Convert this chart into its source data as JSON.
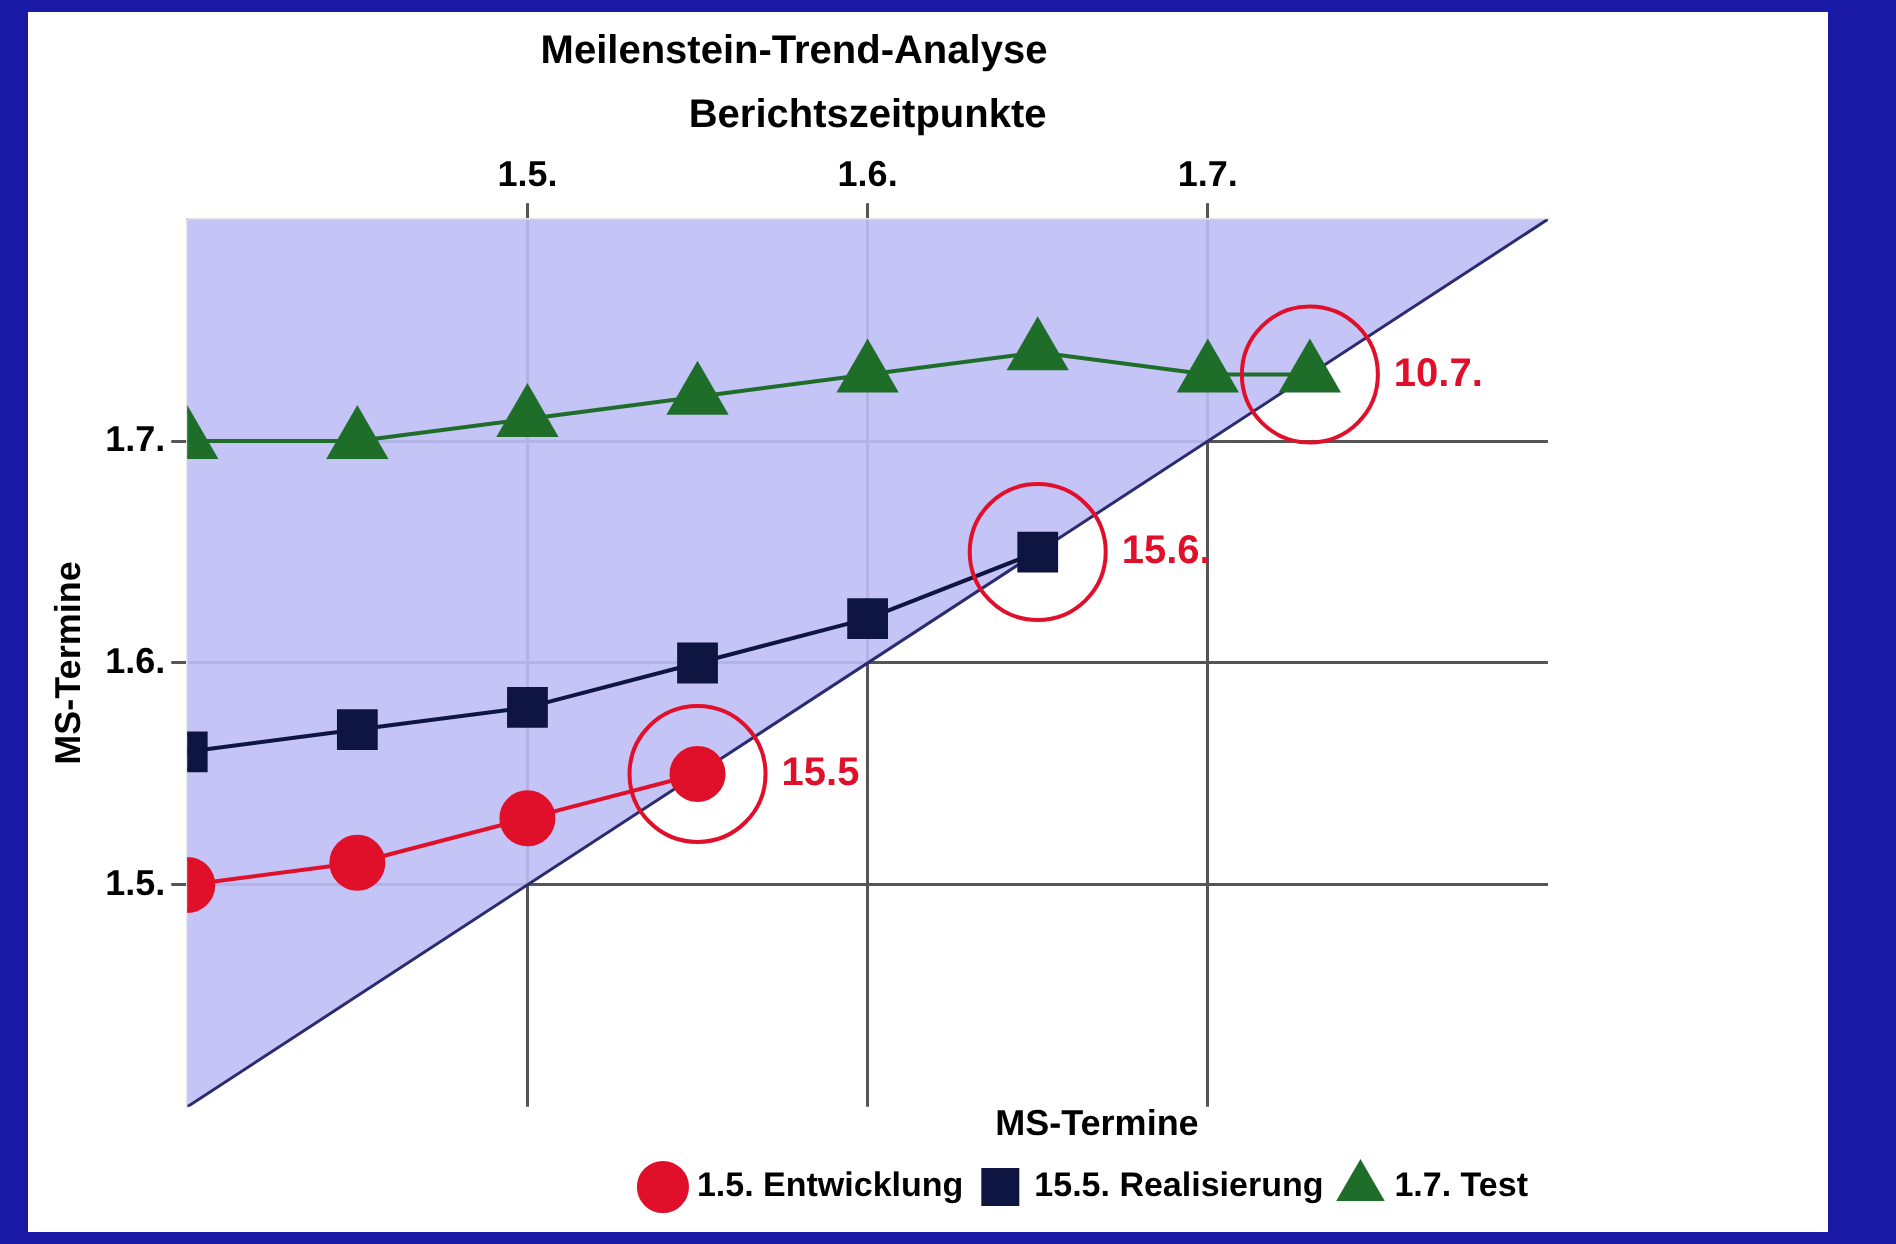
{
  "chart_data": {
    "type": "line",
    "title": "Meilenstein-Trend-Analyse",
    "xlabel": "Berichtszeitpunkte",
    "ylabel": "MS-Termine",
    "legend_title": "MS-Termine",
    "xlim": [
      1.4,
      1.8
    ],
    "ylim": [
      1.4,
      1.8
    ],
    "xticks": [
      {
        "value": 1.5,
        "label": "1.5."
      },
      {
        "value": 1.6,
        "label": "1.6."
      },
      {
        "value": 1.7,
        "label": "1.7."
      }
    ],
    "yticks": [
      {
        "value": 1.5,
        "label": "1.5."
      },
      {
        "value": 1.6,
        "label": "1.6."
      },
      {
        "value": 1.7,
        "label": "1.7."
      }
    ],
    "grid": true,
    "legend": "bottom right",
    "series": [
      {
        "type": "area",
        "color": "#2b2b6e",
        "x": [
          1.4,
          1.8
        ],
        "values": [
          1.4,
          1.8
        ],
        "marker": "none"
      },
      {
        "name": "1.5. Entwicklung",
        "color": "#e0102a",
        "marker": "circle",
        "x": [
          1.4,
          1.45,
          1.5,
          1.55
        ],
        "values": [
          1.5,
          1.51,
          1.53,
          1.55
        ]
      },
      {
        "name": "15.5. Realisierung",
        "color": "#0d1540",
        "marker": "square",
        "x": [
          1.4,
          1.45,
          1.5,
          1.55,
          1.6,
          1.65
        ],
        "values": [
          1.56,
          1.57,
          1.58,
          1.6,
          1.62,
          1.65
        ]
      },
      {
        "name": "1.7. Test",
        "color": "#1e6e2a",
        "marker": "triangle",
        "x": [
          1.4,
          1.45,
          1.5,
          1.55,
          1.6,
          1.65,
          1.7,
          1.73
        ],
        "values": [
          1.7,
          1.7,
          1.71,
          1.72,
          1.73,
          1.74,
          1.73,
          1.73
        ]
      }
    ],
    "annotations": [
      {
        "text": "10.7.",
        "x": 1.73,
        "y": 1.73
      },
      {
        "text": "15.6.",
        "x": 1.65,
        "y": 1.65
      },
      {
        "text": "15.5",
        "x": 1.55,
        "y": 1.55
      }
    ]
  }
}
